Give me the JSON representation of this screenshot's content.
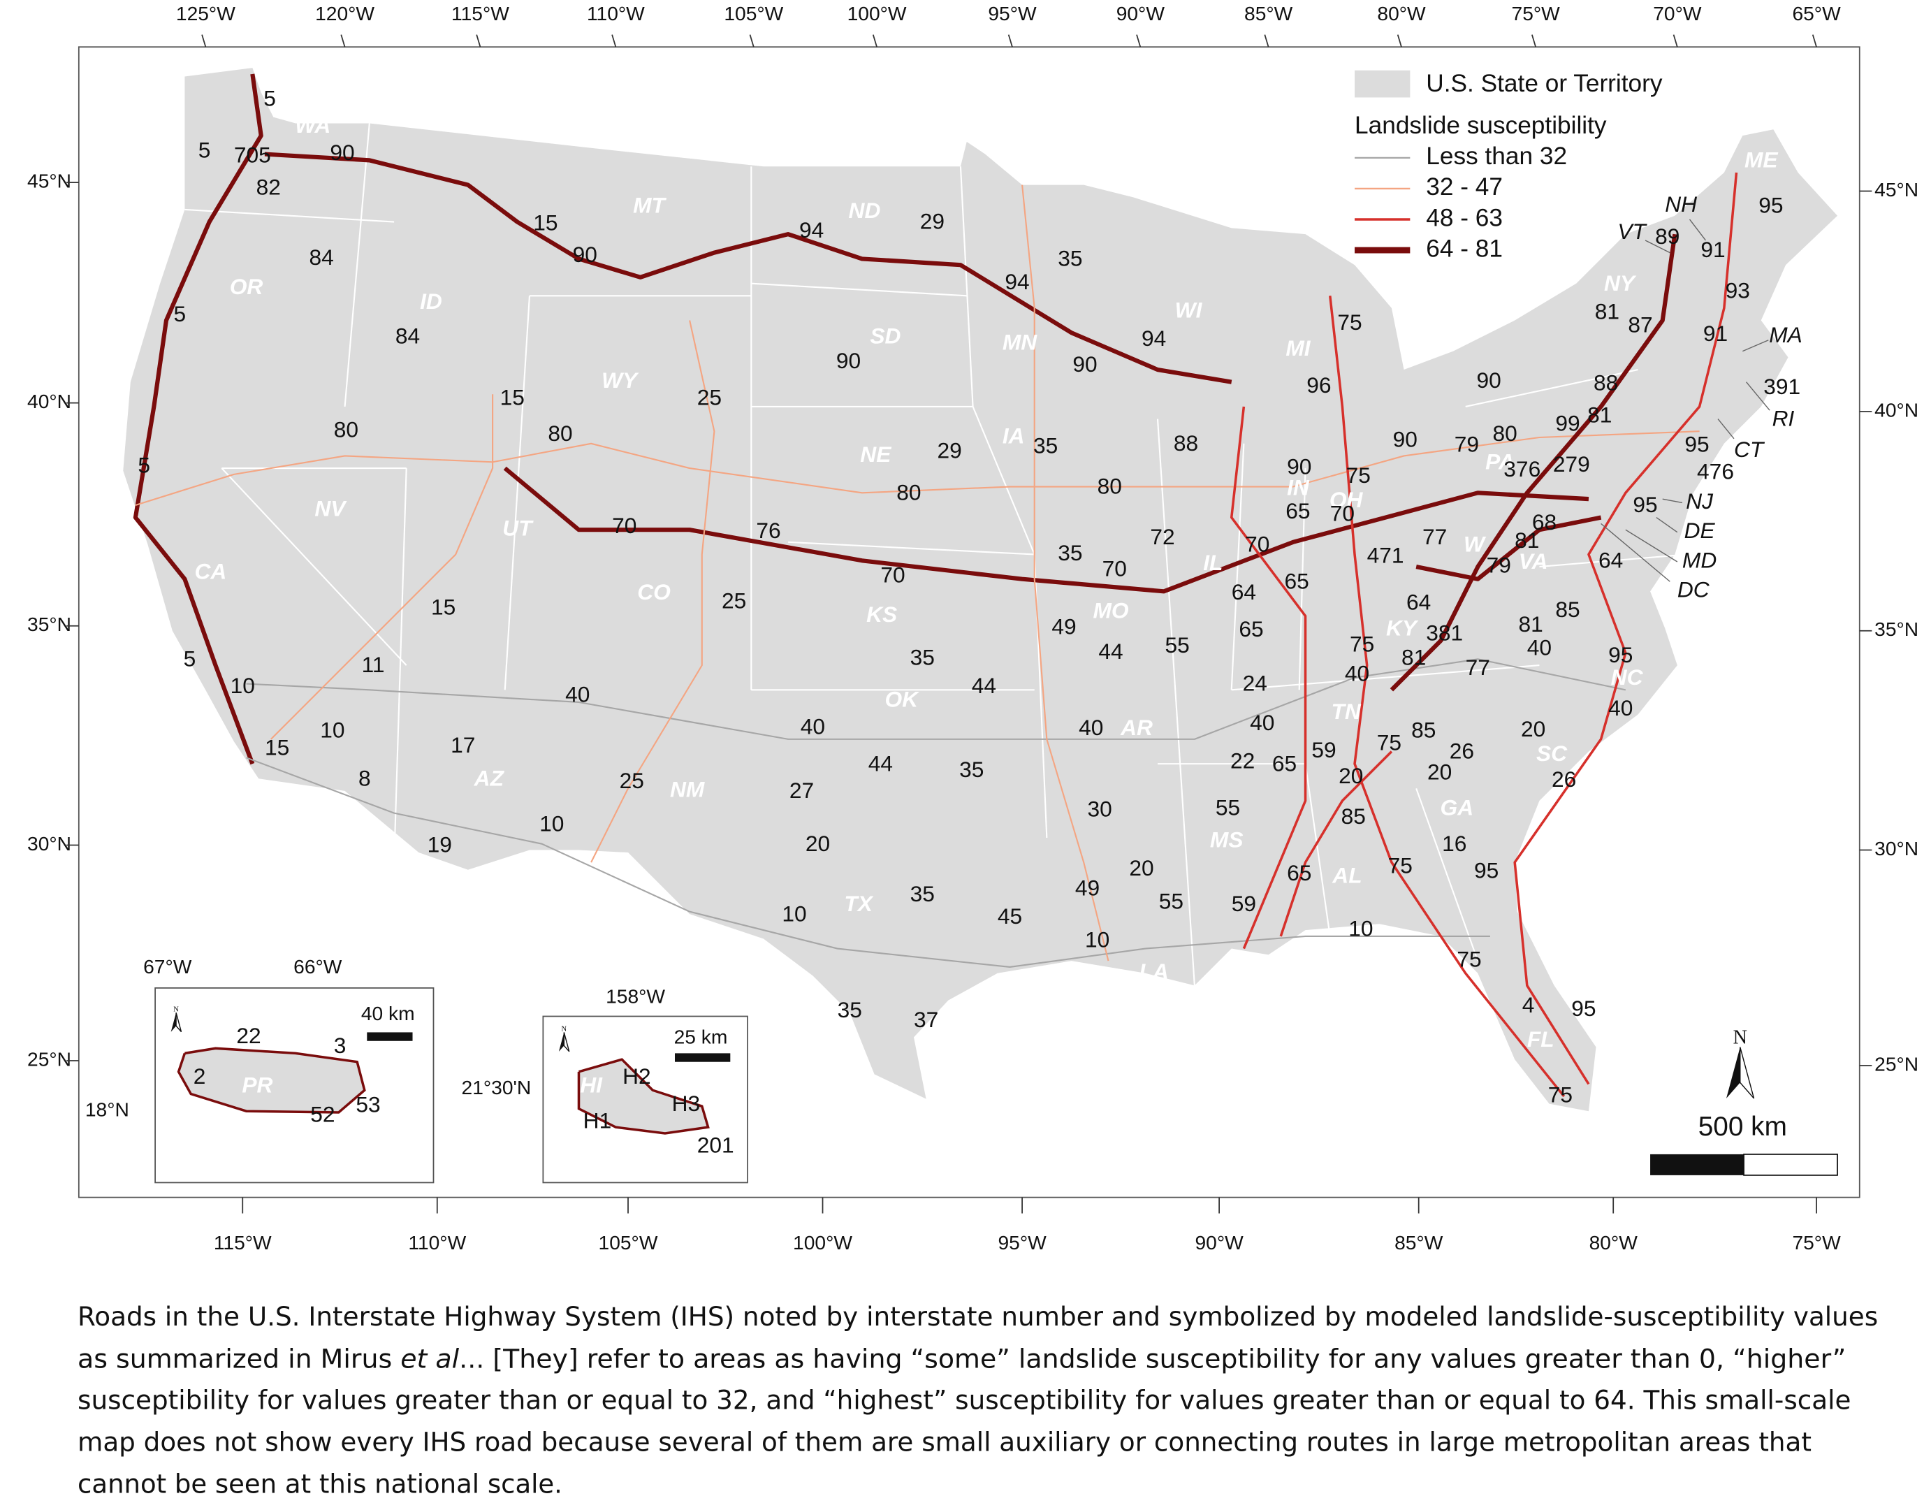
{
  "map": {
    "top_axis_labels": [
      "125°W",
      "120°W",
      "115°W",
      "110°W",
      "105°W",
      "100°W",
      "95°W",
      "90°W",
      "85°W",
      "80°W",
      "75°W",
      "70°W",
      "65°W"
    ],
    "bottom_axis_labels": [
      "115°W",
      "110°W",
      "105°W",
      "100°W",
      "95°W",
      "90°W",
      "85°W",
      "80°W",
      "75°W"
    ],
    "left_axis_labels": [
      "45°N",
      "40°N",
      "35°N",
      "30°N",
      "25°N"
    ],
    "right_axis_labels": [
      "45°N",
      "40°N",
      "35°N",
      "30°N",
      "25°N"
    ],
    "legend": {
      "area": "U.S. State or Territory",
      "area_color": "#dcdcdc",
      "title": "Landslide susceptibility",
      "classes": [
        {
          "label": "Less than 32",
          "color": "#a6a6a6"
        },
        {
          "label": "32 - 47",
          "color": "#f4a582"
        },
        {
          "label": "48 - 63",
          "color": "#d6302b"
        },
        {
          "label": "64 - 81",
          "color": "#7a0c0c"
        }
      ]
    },
    "state_labels": [
      "WA",
      "OR",
      "ID",
      "MT",
      "ND",
      "SD",
      "WY",
      "NV",
      "CA",
      "UT",
      "CO",
      "NE",
      "KS",
      "IA",
      "MN",
      "WI",
      "MI",
      "OK",
      "NM",
      "AZ",
      "TX",
      "AR",
      "MO",
      "IL",
      "IN",
      "OH",
      "KY",
      "TN",
      "MS",
      "AL",
      "GA",
      "FL",
      "SC",
      "NC",
      "VA",
      "W",
      "PA",
      "NY",
      "LA",
      "ME"
    ],
    "small_state_labels": [
      "NH",
      "VT",
      "MA",
      "RI",
      "CT",
      "NJ",
      "DE",
      "MD",
      "DC"
    ],
    "highway_labels": [
      "5",
      "5",
      "705",
      "90",
      "82",
      "84",
      "15",
      "90",
      "94",
      "29",
      "35",
      "94",
      "5",
      "84",
      "94",
      "90",
      "90",
      "75",
      "15",
      "25",
      "96",
      "80",
      "80",
      "29",
      "35",
      "88",
      "90",
      "5",
      "90",
      "75",
      "80",
      "80",
      "65",
      "70",
      "70",
      "76",
      "72",
      "70",
      "35",
      "70",
      "70",
      "471",
      "15",
      "25",
      "65",
      "64",
      "49",
      "44",
      "55",
      "65",
      "35",
      "10",
      "5",
      "11",
      "75",
      "40",
      "24",
      "44",
      "40",
      "40",
      "40",
      "40",
      "10",
      "15",
      "17",
      "8",
      "44",
      "35",
      "25",
      "27",
      "22",
      "65",
      "59",
      "20",
      "75",
      "85",
      "26",
      "20",
      "20",
      "26",
      "30",
      "55",
      "85",
      "10",
      "19",
      "20",
      "16",
      "20",
      "49",
      "65",
      "75",
      "95",
      "35",
      "55",
      "59",
      "45",
      "10",
      "10",
      "10",
      "75",
      "4",
      "95",
      "35",
      "37",
      "75",
      "95",
      "89",
      "91",
      "93",
      "81",
      "87",
      "91",
      "90",
      "88",
      "391",
      "81",
      "99",
      "79",
      "80",
      "95",
      "376",
      "279",
      "476",
      "68",
      "95",
      "81",
      "77",
      "79",
      "64",
      "64",
      "381",
      "81",
      "85",
      "81",
      "77",
      "40",
      "95",
      "40"
    ],
    "north": "N",
    "scale_label": "500 km",
    "insets": [
      {
        "longitude_labels": [
          "67°W",
          "66°W"
        ],
        "latitude_labels": [
          "18°N"
        ],
        "scale_label": "40 km",
        "north": "N",
        "state_label": "PR",
        "highway_labels": [
          "22",
          "3",
          "2",
          "52",
          "53"
        ]
      },
      {
        "longitude_labels": [
          "158°W"
        ],
        "latitude_labels": [
          "21°30'N"
        ],
        "scale_label": "25 km",
        "north": "N",
        "state_label": "HI",
        "highway_labels": [
          "H2",
          "H3",
          "H1",
          "201"
        ]
      }
    ]
  },
  "caption": {
    "lines": [
      "Roads in the U.S. Interstate Highway System (IHS) noted by interstate number and symbolized by modeled landslide-susceptibility values",
      [
        "as summarized in Mirus ",
        "et al",
        "... [They] refer to areas as having “some” landslide susceptibility for any values greater than 0, “higher”"
      ],
      "susceptibility for values greater than or equal to 32, and “highest” susceptibility for values greater than or equal to 64. This small-scale",
      "map does not show every IHS road because several of them are small auxiliary or connecting routes in large metropolitan areas that",
      "cannot be seen at this national scale."
    ]
  }
}
